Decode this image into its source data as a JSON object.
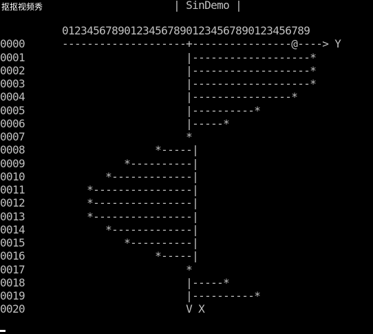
{
  "app_label": "抠抠视频秀",
  "console": {
    "lines": [
      "                            | SinDemo |",
      "",
      "          0123456789012345678901234567890123456789",
      "0000      --------------------+----------------@----> Y",
      "0001                          |-------------------*",
      "0002                          |-------------------*",
      "0003                          |-------------------*",
      "0004                          |----------------*",
      "0005                          |----------*",
      "0006                          |-----*",
      "0007                          *",
      "0008                     *-----|",
      "0009                *----------|",
      "0010             *-------------|",
      "0011          *----------------|",
      "0012          *----------------|",
      "0013          *----------------|",
      "0014             *-------------|",
      "0015                *----------|",
      "0016                     *-----|",
      "0017                          *",
      "0018                          |-----*",
      "0019                          |----------*",
      "0020                          V X"
    ]
  }
}
